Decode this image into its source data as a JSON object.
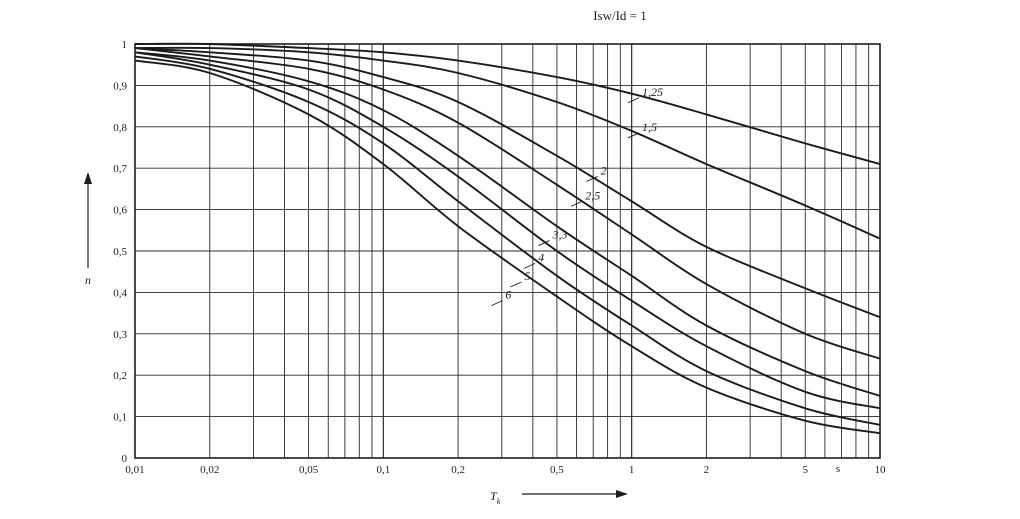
{
  "chart_data": {
    "type": "line",
    "title": "Isw/Id = 1",
    "xlabel": "Tk",
    "xlabel_subscript": "k",
    "ylabel": "n",
    "x_unit": "s",
    "x_scale": "log",
    "xlim": [
      0.01,
      10
    ],
    "ylim": [
      0,
      1
    ],
    "grid": true,
    "y_ticks": [
      {
        "v": 0,
        "label": "0"
      },
      {
        "v": 0.1,
        "label": "0,1"
      },
      {
        "v": 0.2,
        "label": "0,2"
      },
      {
        "v": 0.3,
        "label": "0,3"
      },
      {
        "v": 0.4,
        "label": "0,4"
      },
      {
        "v": 0.5,
        "label": "0,5"
      },
      {
        "v": 0.6,
        "label": "0,6"
      },
      {
        "v": 0.7,
        "label": "0,7"
      },
      {
        "v": 0.8,
        "label": "0,8"
      },
      {
        "v": 0.9,
        "label": "0,9"
      },
      {
        "v": 1,
        "label": "1"
      }
    ],
    "x_ticks": [
      {
        "v": 0.01,
        "label": "0,01"
      },
      {
        "v": 0.02,
        "label": "0,02"
      },
      {
        "v": 0.05,
        "label": "0,05"
      },
      {
        "v": 0.1,
        "label": "0,1"
      },
      {
        "v": 0.2,
        "label": "0,2"
      },
      {
        "v": 0.5,
        "label": "0,5"
      },
      {
        "v": 1,
        "label": "1"
      },
      {
        "v": 2,
        "label": "2"
      },
      {
        "v": 5,
        "label": "5"
      },
      {
        "v": 10,
        "label": "10"
      }
    ],
    "series": [
      {
        "name": "1,25",
        "x": [
          0.01,
          0.02,
          0.05,
          0.1,
          0.2,
          0.5,
          1,
          2,
          5,
          10
        ],
        "y": [
          1.0,
          1.0,
          0.99,
          0.98,
          0.96,
          0.92,
          0.88,
          0.83,
          0.76,
          0.71
        ]
      },
      {
        "name": "1,5",
        "x": [
          0.01,
          0.02,
          0.05,
          0.1,
          0.2,
          0.5,
          1,
          2,
          5,
          10
        ],
        "y": [
          0.99,
          0.99,
          0.98,
          0.96,
          0.93,
          0.86,
          0.79,
          0.71,
          0.61,
          0.53
        ]
      },
      {
        "name": "2",
        "x": [
          0.01,
          0.02,
          0.05,
          0.1,
          0.2,
          0.5,
          1,
          2,
          5,
          10
        ],
        "y": [
          0.99,
          0.98,
          0.96,
          0.92,
          0.86,
          0.73,
          0.62,
          0.51,
          0.41,
          0.34
        ]
      },
      {
        "name": "2,5",
        "x": [
          0.01,
          0.02,
          0.05,
          0.1,
          0.2,
          0.5,
          1,
          2,
          5,
          10
        ],
        "y": [
          0.99,
          0.97,
          0.94,
          0.89,
          0.81,
          0.66,
          0.54,
          0.42,
          0.3,
          0.24
        ]
      },
      {
        "name": "3,3",
        "x": [
          0.01,
          0.02,
          0.05,
          0.1,
          0.2,
          0.5,
          1,
          2,
          5,
          10
        ],
        "y": [
          0.98,
          0.96,
          0.91,
          0.84,
          0.73,
          0.56,
          0.44,
          0.32,
          0.21,
          0.15
        ]
      },
      {
        "name": "4",
        "x": [
          0.01,
          0.02,
          0.05,
          0.1,
          0.2,
          0.5,
          1,
          2,
          5,
          10
        ],
        "y": [
          0.98,
          0.95,
          0.89,
          0.8,
          0.68,
          0.5,
          0.38,
          0.27,
          0.16,
          0.12
        ]
      },
      {
        "name": "5",
        "x": [
          0.01,
          0.02,
          0.05,
          0.1,
          0.2,
          0.5,
          1,
          2,
          5,
          10
        ],
        "y": [
          0.97,
          0.94,
          0.86,
          0.76,
          0.62,
          0.44,
          0.32,
          0.21,
          0.12,
          0.08
        ]
      },
      {
        "name": "6",
        "x": [
          0.01,
          0.02,
          0.05,
          0.1,
          0.2,
          0.5,
          1,
          2,
          5,
          10
        ],
        "y": [
          0.96,
          0.93,
          0.83,
          0.71,
          0.56,
          0.39,
          0.27,
          0.17,
          0.09,
          0.06
        ]
      }
    ],
    "series_labels": [
      {
        "series": "1,25",
        "x": 1.1,
        "y": 0.875
      },
      {
        "series": "1,5",
        "x": 1.1,
        "y": 0.79
      },
      {
        "series": "2",
        "x": 0.75,
        "y": 0.685
      },
      {
        "series": "2,5",
        "x": 0.65,
        "y": 0.625
      },
      {
        "series": "3,3",
        "x": 0.48,
        "y": 0.53
      },
      {
        "series": "4",
        "x": 0.42,
        "y": 0.475
      },
      {
        "series": "5",
        "x": 0.37,
        "y": 0.43
      },
      {
        "series": "6",
        "x": 0.31,
        "y": 0.385
      }
    ]
  }
}
